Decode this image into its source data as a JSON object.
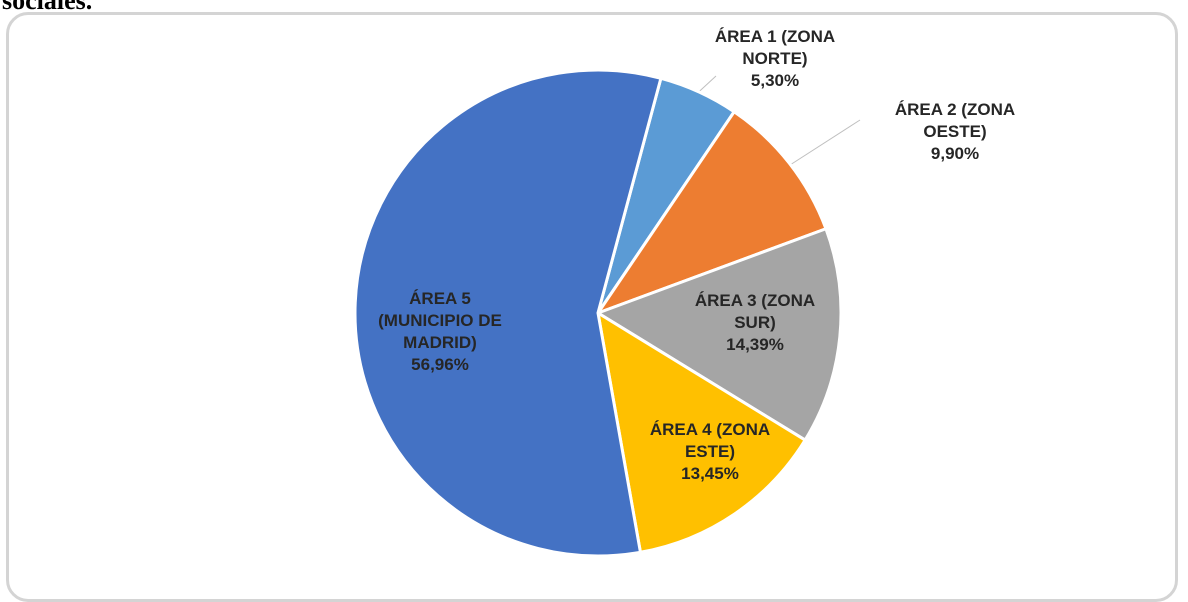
{
  "heading": "sociales.",
  "chart_data": {
    "type": "pie",
    "categories": [
      "ÁREA 1 (ZONA NORTE)",
      "ÁREA 2 (ZONA OESTE)",
      "ÁREA 3 (ZONA SUR)",
      "ÁREA 4 (ZONA ESTE)",
      "ÁREA 5 (MUNICIPIO DE MADRID)"
    ],
    "values": [
      5.3,
      9.9,
      14.39,
      13.45,
      56.96
    ],
    "value_labels": [
      "5,30%",
      "9,90%",
      "14,39%",
      "13,45%",
      "56,96%"
    ],
    "colors": [
      "#5b9bd5",
      "#ed7d31",
      "#a5a5a5",
      "#ffc000",
      "#4472c4"
    ]
  }
}
